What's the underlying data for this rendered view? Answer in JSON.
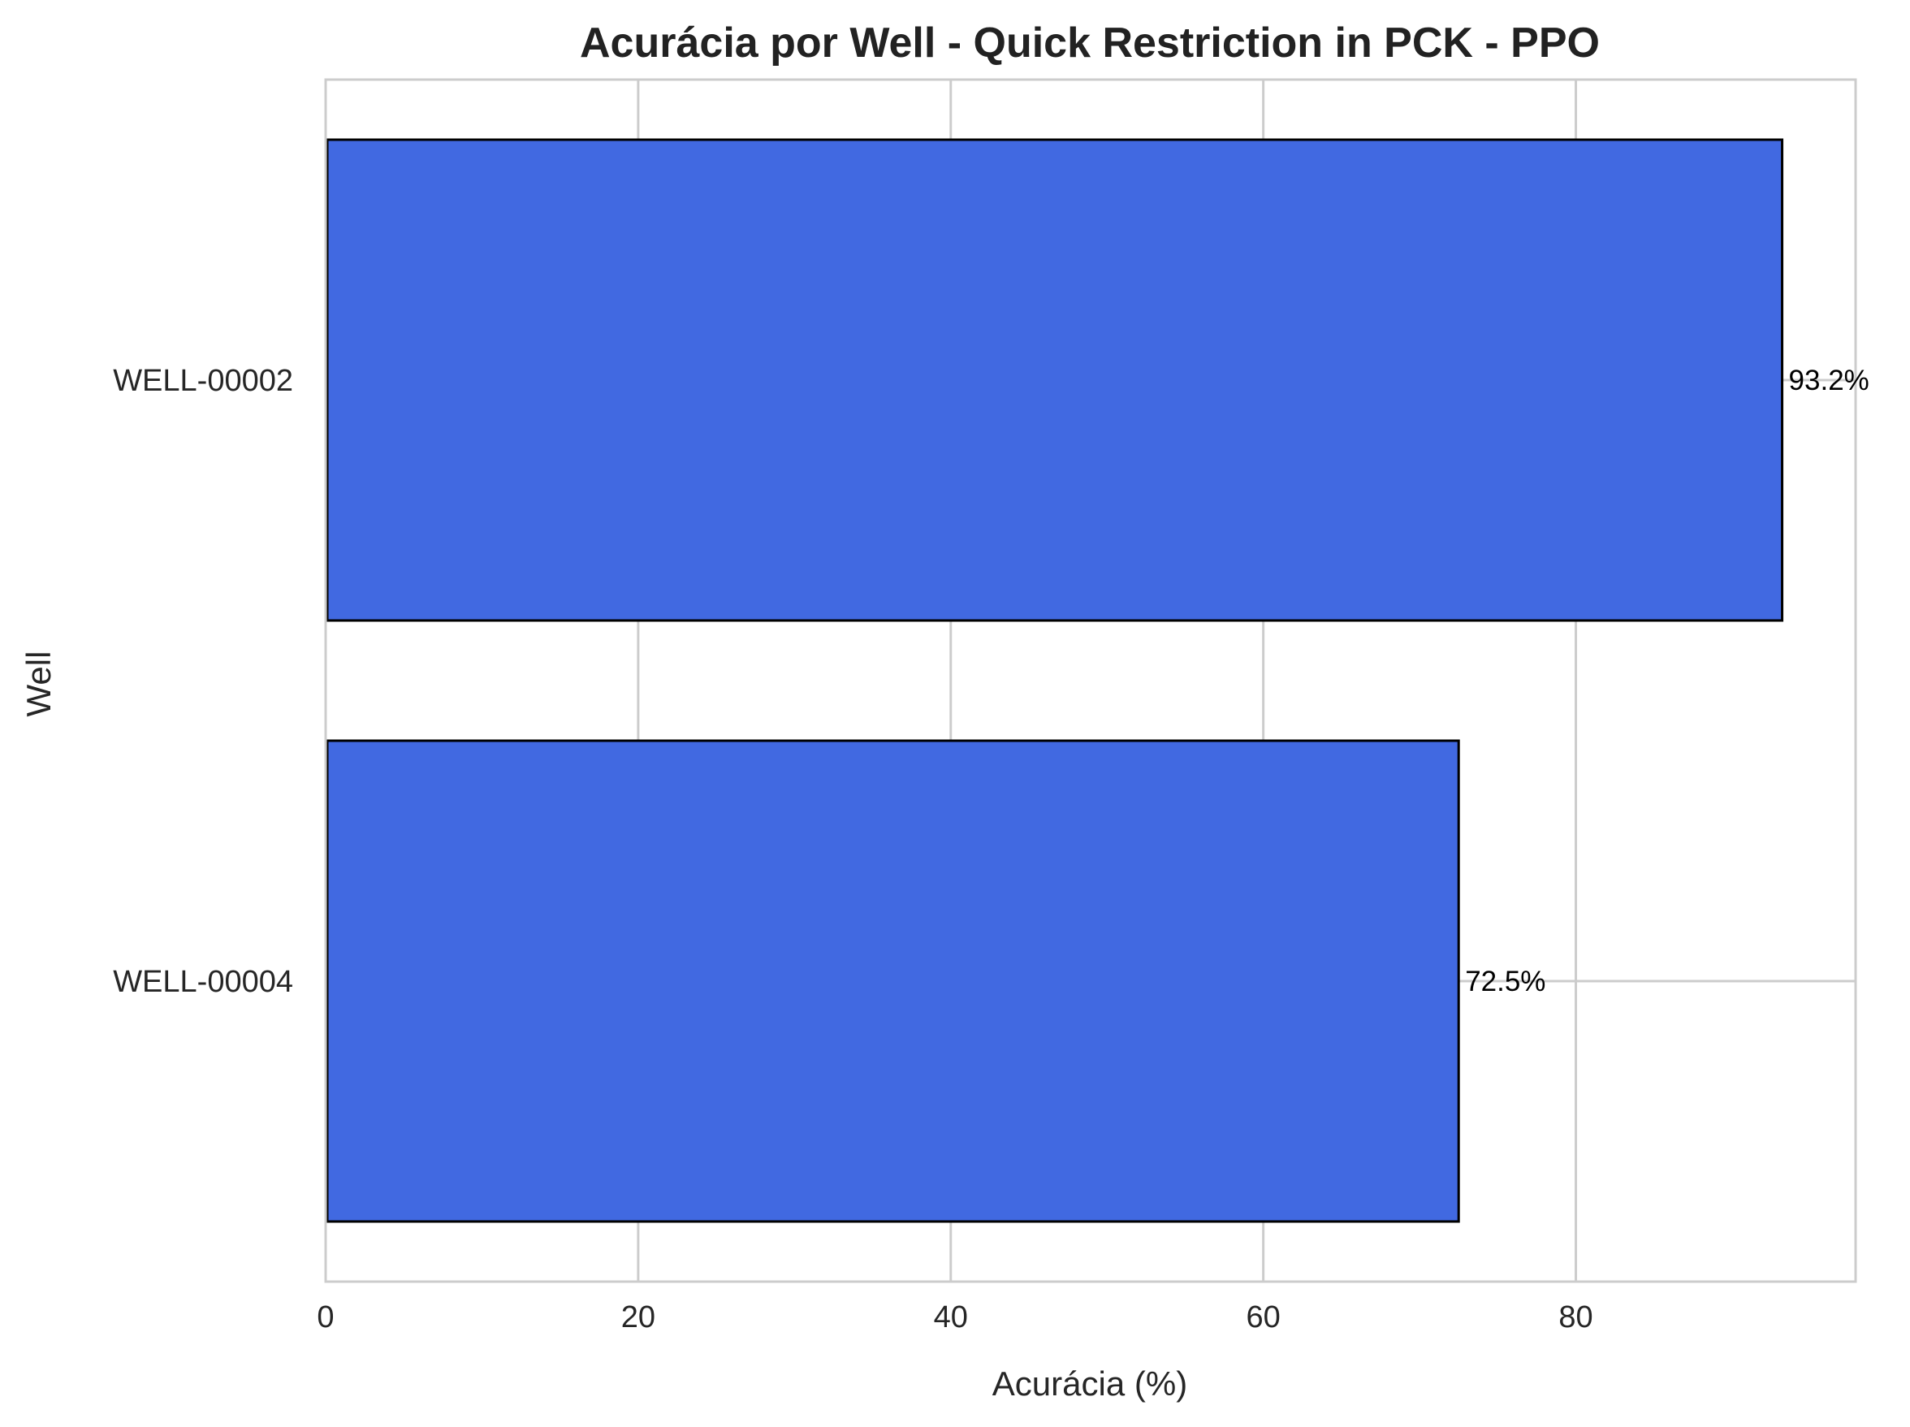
{
  "chart_data": {
    "type": "bar",
    "orientation": "horizontal",
    "title": "Acurácia por Well - Quick Restriction in PCK - PPO",
    "xlabel": "Acurácia (%)",
    "ylabel": "Well",
    "categories": [
      "WELL-00002",
      "WELL-00004"
    ],
    "values": [
      93.2,
      72.5
    ],
    "data_labels": [
      "93.2%",
      "72.5%"
    ],
    "xlim": [
      0,
      97.9
    ],
    "xticks": [
      0,
      20,
      40,
      60,
      80
    ],
    "xtick_labels": [
      "0",
      "20",
      "40",
      "60",
      "80"
    ],
    "grid": true,
    "legend": "none",
    "colors": {
      "bar": "#4169E1",
      "bar_edge": "#000000",
      "grid": "#cccccc",
      "frame": "#cccccc"
    }
  }
}
